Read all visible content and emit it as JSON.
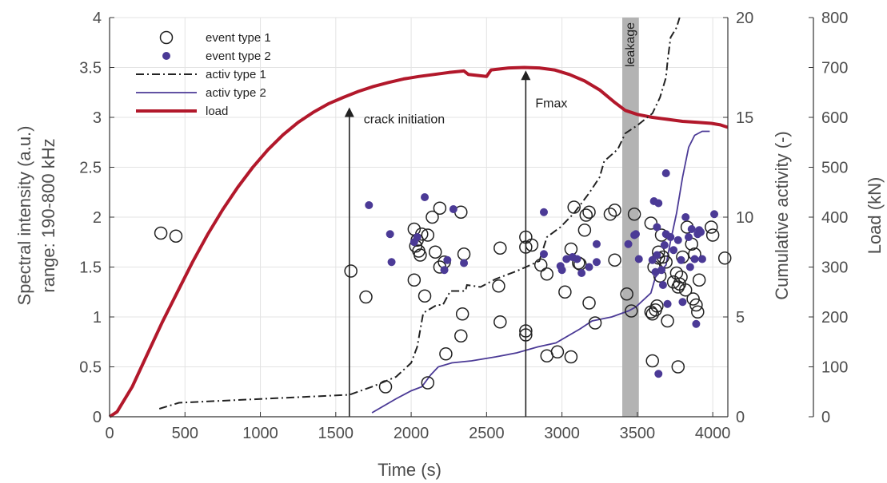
{
  "chart_data": {
    "type": "scatter",
    "xlabel": "Time (s)",
    "ylabel_left": [
      "Spectral intensity (a.u.)",
      "range: 190-800 kHz"
    ],
    "ylabel_right1": "Cumulative activity (-)",
    "ylabel_right2": "Load (kN)",
    "xlim": [
      0,
      4100
    ],
    "ylim_left": [
      0,
      4
    ],
    "ylim_right1": [
      0,
      20
    ],
    "ylim_right2": [
      0,
      800
    ],
    "xticks": [
      0,
      500,
      1000,
      1500,
      2000,
      2500,
      3000,
      3500,
      4000
    ],
    "yticks_left": [
      0,
      0.5,
      1,
      1.5,
      2,
      2.5,
      3,
      3.5,
      4
    ],
    "yticks_right1": [
      0,
      5,
      10,
      15,
      20
    ],
    "yticks_right2": [
      0,
      100,
      200,
      300,
      400,
      500,
      600,
      700,
      800
    ],
    "grid": true,
    "legend_position": "top-left",
    "legend": [
      {
        "label": "event type 1",
        "style": "open-circle",
        "color": "#222222"
      },
      {
        "label": "event type 2",
        "style": "dot",
        "color": "#4b3a96"
      },
      {
        "label": "activ type 1",
        "style": "dashdot",
        "color": "#222222"
      },
      {
        "label": "activ type 2",
        "style": "line",
        "color": "#4b3a96"
      },
      {
        "label": "load",
        "style": "thick-line",
        "color": "#b2182b"
      }
    ],
    "colors": {
      "type1": "#222222",
      "type2": "#4b3a96",
      "load": "#b2182b",
      "band": "#b3b3b3"
    },
    "leakage_band": {
      "label": "leakage",
      "x": [
        3400,
        3510
      ]
    },
    "annotations": [
      {
        "label": "crack initiation",
        "x": 1590,
        "y_end": 3.1
      },
      {
        "label": "Fmax",
        "x": 2760,
        "y_end": 3.47
      }
    ],
    "event_type1": [
      [
        340,
        1.84
      ],
      [
        440,
        1.81
      ],
      [
        1600,
        1.46
      ],
      [
        1700,
        1.2
      ],
      [
        1830,
        0.3
      ],
      [
        2020,
        1.88
      ],
      [
        2030,
        1.71
      ],
      [
        2040,
        1.77
      ],
      [
        2050,
        1.66
      ],
      [
        2060,
        1.62
      ],
      [
        2070,
        1.83
      ],
      [
        2020,
        1.37
      ],
      [
        2090,
        1.21
      ],
      [
        2110,
        1.82
      ],
      [
        2140,
        2.0
      ],
      [
        2160,
        1.65
      ],
      [
        2190,
        1.5
      ],
      [
        2190,
        2.09
      ],
      [
        2220,
        1.55
      ],
      [
        2110,
        0.34
      ],
      [
        2230,
        0.63
      ],
      [
        2330,
        2.05
      ],
      [
        2330,
        0.81
      ],
      [
        2340,
        1.03
      ],
      [
        2350,
        1.63
      ],
      [
        2590,
        1.69
      ],
      [
        2580,
        1.31
      ],
      [
        2590,
        0.95
      ],
      [
        2760,
        1.8
      ],
      [
        2760,
        1.7
      ],
      [
        2760,
        0.86
      ],
      [
        2760,
        0.82
      ],
      [
        2800,
        1.72
      ],
      [
        2860,
        1.52
      ],
      [
        2900,
        1.43
      ],
      [
        2900,
        0.61
      ],
      [
        2970,
        0.65
      ],
      [
        3020,
        1.25
      ],
      [
        3060,
        1.68
      ],
      [
        3060,
        0.6
      ],
      [
        3080,
        2.1
      ],
      [
        3110,
        1.54
      ],
      [
        3120,
        1.53
      ],
      [
        3150,
        1.87
      ],
      [
        3160,
        2.02
      ],
      [
        3180,
        2.05
      ],
      [
        3180,
        1.14
      ],
      [
        3220,
        0.94
      ],
      [
        3320,
        2.03
      ],
      [
        3350,
        2.07
      ],
      [
        3350,
        1.57
      ],
      [
        3430,
        1.23
      ],
      [
        3480,
        2.03
      ],
      [
        3460,
        1.06
      ],
      [
        3590,
        1.94
      ],
      [
        3590,
        1.05
      ],
      [
        3600,
        1.03
      ],
      [
        3600,
        0.56
      ],
      [
        3610,
        1.5
      ],
      [
        3620,
        1.07
      ],
      [
        3630,
        1.11
      ],
      [
        3640,
        1.59
      ],
      [
        3640,
        1.65
      ],
      [
        3650,
        1.41
      ],
      [
        3660,
        1.82
      ],
      [
        3670,
        1.6
      ],
      [
        3690,
        1.55
      ],
      [
        3700,
        0.96
      ],
      [
        3740,
        1.35
      ],
      [
        3760,
        1.44
      ],
      [
        3770,
        1.3
      ],
      [
        3770,
        0.5
      ],
      [
        3780,
        1.33
      ],
      [
        3790,
        1.4
      ],
      [
        3800,
        1.6
      ],
      [
        3820,
        1.27
      ],
      [
        3830,
        1.9
      ],
      [
        3860,
        1.73
      ],
      [
        3870,
        1.18
      ],
      [
        3880,
        1.63
      ],
      [
        3890,
        1.12
      ],
      [
        3900,
        1.05
      ],
      [
        3910,
        1.37
      ],
      [
        3990,
        1.9
      ],
      [
        4000,
        1.82
      ],
      [
        4080,
        1.59
      ]
    ],
    "event_type2": [
      [
        1720,
        2.12
      ],
      [
        1860,
        1.83
      ],
      [
        1870,
        1.55
      ],
      [
        2020,
        1.75
      ],
      [
        2040,
        1.8
      ],
      [
        2090,
        2.2
      ],
      [
        2220,
        1.47
      ],
      [
        2240,
        1.57
      ],
      [
        2280,
        2.08
      ],
      [
        2350,
        1.54
      ],
      [
        2880,
        2.05
      ],
      [
        2880,
        1.63
      ],
      [
        2990,
        1.51
      ],
      [
        3000,
        1.47
      ],
      [
        3030,
        1.58
      ],
      [
        3070,
        1.6
      ],
      [
        3100,
        1.58
      ],
      [
        3130,
        1.44
      ],
      [
        3180,
        1.5
      ],
      [
        3230,
        1.55
      ],
      [
        3230,
        1.73
      ],
      [
        3440,
        1.73
      ],
      [
        3480,
        1.82
      ],
      [
        3490,
        1.83
      ],
      [
        3510,
        1.58
      ],
      [
        3600,
        1.57
      ],
      [
        3610,
        2.16
      ],
      [
        3620,
        1.45
      ],
      [
        3630,
        1.9
      ],
      [
        3630,
        1.62
      ],
      [
        3640,
        2.14
      ],
      [
        3640,
        0.43
      ],
      [
        3660,
        1.47
      ],
      [
        3670,
        1.32
      ],
      [
        3680,
        1.72
      ],
      [
        3690,
        1.83
      ],
      [
        3690,
        2.44
      ],
      [
        3700,
        1.13
      ],
      [
        3720,
        1.8
      ],
      [
        3740,
        1.67
      ],
      [
        3770,
        1.77
      ],
      [
        3790,
        1.57
      ],
      [
        3800,
        1.15
      ],
      [
        3820,
        2.0
      ],
      [
        3840,
        1.8
      ],
      [
        3850,
        1.5
      ],
      [
        3860,
        1.88
      ],
      [
        3880,
        1.58
      ],
      [
        3890,
        0.93
      ],
      [
        3900,
        1.83
      ],
      [
        3910,
        1.87
      ],
      [
        3920,
        1.85
      ],
      [
        3930,
        1.58
      ],
      [
        4010,
        2.03
      ]
    ],
    "activ_type1": [
      [
        330,
        0.4
      ],
      [
        460,
        0.7
      ],
      [
        1590,
        1.1
      ],
      [
        1740,
        1.5
      ],
      [
        1900,
        2.0
      ],
      [
        2000,
        2.7
      ],
      [
        2040,
        3.5
      ],
      [
        2080,
        5.2
      ],
      [
        2170,
        5.6
      ],
      [
        2210,
        5.6
      ],
      [
        2260,
        6.3
      ],
      [
        2360,
        6.3
      ],
      [
        2370,
        6.6
      ],
      [
        2460,
        6.5
      ],
      [
        2560,
        6.9
      ],
      [
        2700,
        7.3
      ],
      [
        2760,
        7.5
      ],
      [
        2850,
        7.8
      ],
      [
        2900,
        9.0
      ],
      [
        2990,
        9.5
      ],
      [
        3080,
        10.2
      ],
      [
        3180,
        11.2
      ],
      [
        3250,
        12.0
      ],
      [
        3280,
        12.8
      ],
      [
        3370,
        13.4
      ],
      [
        3420,
        14.2
      ],
      [
        3500,
        14.6
      ],
      [
        3600,
        15.2
      ],
      [
        3650,
        16.0
      ],
      [
        3690,
        17.0
      ],
      [
        3700,
        17.8
      ],
      [
        3720,
        19.0
      ],
      [
        3760,
        19.5
      ],
      [
        3780,
        20.0
      ]
    ],
    "activ_type2": [
      [
        1740,
        0.2
      ],
      [
        1900,
        0.9
      ],
      [
        2000,
        1.3
      ],
      [
        2070,
        1.5
      ],
      [
        2130,
        2.1
      ],
      [
        2180,
        2.5
      ],
      [
        2270,
        2.7
      ],
      [
        2400,
        2.8
      ],
      [
        2560,
        3.0
      ],
      [
        2700,
        3.2
      ],
      [
        2840,
        3.5
      ],
      [
        2960,
        3.7
      ],
      [
        3120,
        4.4
      ],
      [
        3200,
        4.8
      ],
      [
        3330,
        5.0
      ],
      [
        3440,
        5.3
      ],
      [
        3490,
        5.5
      ],
      [
        3590,
        6.2
      ],
      [
        3620,
        7.0
      ],
      [
        3690,
        7.6
      ],
      [
        3720,
        8.8
      ],
      [
        3760,
        10.2
      ],
      [
        3800,
        12.0
      ],
      [
        3840,
        13.5
      ],
      [
        3880,
        14.1
      ],
      [
        3930,
        14.3
      ],
      [
        3980,
        14.3
      ]
    ],
    "load": [
      [
        0,
        0
      ],
      [
        50,
        10
      ],
      [
        150,
        60
      ],
      [
        250,
        125
      ],
      [
        350,
        190
      ],
      [
        450,
        250
      ],
      [
        550,
        310
      ],
      [
        650,
        365
      ],
      [
        750,
        415
      ],
      [
        850,
        460
      ],
      [
        950,
        500
      ],
      [
        1050,
        535
      ],
      [
        1150,
        565
      ],
      [
        1250,
        590
      ],
      [
        1350,
        610
      ],
      [
        1450,
        627
      ],
      [
        1550,
        640
      ],
      [
        1650,
        652
      ],
      [
        1750,
        662
      ],
      [
        1850,
        670
      ],
      [
        1950,
        677
      ],
      [
        2050,
        682
      ],
      [
        2150,
        686
      ],
      [
        2250,
        690
      ],
      [
        2350,
        693
      ],
      [
        2380,
        686
      ],
      [
        2500,
        682
      ],
      [
        2530,
        695
      ],
      [
        2650,
        699
      ],
      [
        2750,
        700
      ],
      [
        2850,
        699
      ],
      [
        2950,
        695
      ],
      [
        3050,
        686
      ],
      [
        3150,
        673
      ],
      [
        3250,
        655
      ],
      [
        3350,
        630
      ],
      [
        3420,
        614
      ],
      [
        3500,
        606
      ],
      [
        3600,
        600
      ],
      [
        3700,
        596
      ],
      [
        3800,
        592
      ],
      [
        3900,
        590
      ],
      [
        3990,
        588
      ],
      [
        4050,
        585
      ],
      [
        4100,
        580
      ]
    ]
  }
}
